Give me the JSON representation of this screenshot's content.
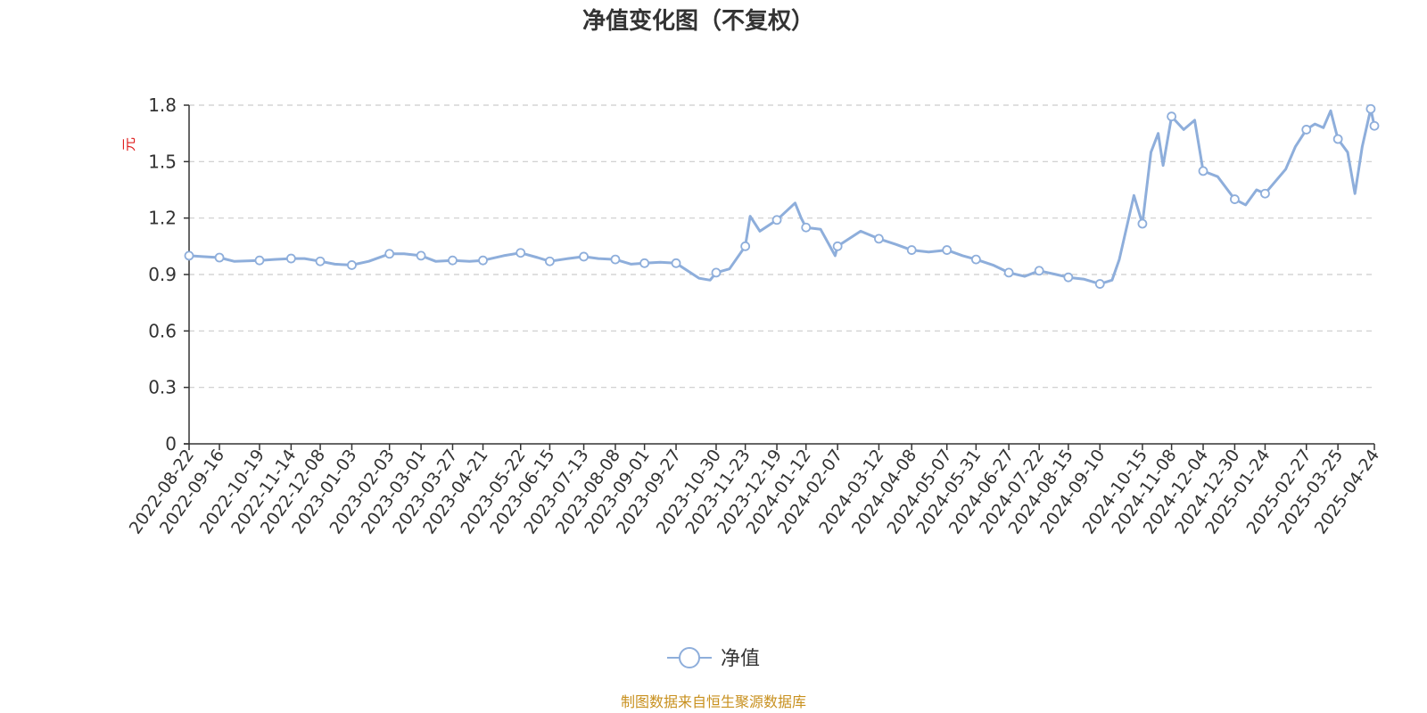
{
  "chart_data": {
    "type": "line",
    "title": "净值变化图（不复权）",
    "ylabel": "元",
    "ylim": [
      0,
      1.8
    ],
    "yticks": [
      0,
      0.3,
      0.6,
      0.9,
      1.2,
      1.5,
      1.8
    ],
    "grid": true,
    "legend_position": "bottom-center",
    "colors": {
      "line": "#8eaedb",
      "marker_fill": "#ffffff",
      "grid": "#cccccc",
      "axis": "#333333",
      "unit": "#e02020",
      "source": "#c8901e"
    },
    "x_tick_labels": [
      "2022-08-22",
      "2022-09-16",
      "2022-10-19",
      "2022-11-14",
      "2022-12-08",
      "2023-01-03",
      "2023-02-03",
      "2023-03-01",
      "2023-03-27",
      "2023-04-21",
      "2023-05-22",
      "2023-06-15",
      "2023-07-13",
      "2023-08-08",
      "2023-09-01",
      "2023-09-27",
      "2023-10-30",
      "2023-11-23",
      "2023-12-19",
      "2024-01-12",
      "2024-02-07",
      "2024-03-12",
      "2024-04-08",
      "2024-05-07",
      "2024-05-31",
      "2024-06-27",
      "2024-07-22",
      "2024-08-15",
      "2024-09-10",
      "2024-10-15",
      "2024-11-08",
      "2024-12-04",
      "2024-12-30",
      "2025-01-24",
      "2025-02-27",
      "2025-03-25",
      "2025-04-24"
    ],
    "series": [
      {
        "name": "净值",
        "x": [
          "2022-08-22",
          "2022-09-02",
          "2022-09-16",
          "2022-09-28",
          "2022-10-19",
          "2022-10-31",
          "2022-11-14",
          "2022-11-25",
          "2022-12-08",
          "2022-12-20",
          "2023-01-03",
          "2023-01-17",
          "2023-02-03",
          "2023-02-15",
          "2023-03-01",
          "2023-03-13",
          "2023-03-27",
          "2023-04-10",
          "2023-04-21",
          "2023-05-08",
          "2023-05-22",
          "2023-06-05",
          "2023-06-15",
          "2023-06-30",
          "2023-07-13",
          "2023-07-25",
          "2023-08-08",
          "2023-08-21",
          "2023-09-01",
          "2023-09-14",
          "2023-09-27",
          "2023-10-16",
          "2023-10-25",
          "2023-10-30",
          "2023-11-10",
          "2023-11-23",
          "2023-11-27",
          "2023-12-05",
          "2023-12-19",
          "2024-01-03",
          "2024-01-08",
          "2024-01-12",
          "2024-01-24",
          "2024-02-05",
          "2024-02-07",
          "2024-02-26",
          "2024-03-12",
          "2024-03-26",
          "2024-04-08",
          "2024-04-22",
          "2024-05-07",
          "2024-05-20",
          "2024-05-31",
          "2024-06-14",
          "2024-06-27",
          "2024-07-10",
          "2024-07-22",
          "2024-08-05",
          "2024-08-15",
          "2024-08-28",
          "2024-09-10",
          "2024-09-20",
          "2024-09-26",
          "2024-10-08",
          "2024-10-15",
          "2024-10-22",
          "2024-10-28",
          "2024-11-01",
          "2024-11-08",
          "2024-11-18",
          "2024-11-27",
          "2024-12-04",
          "2024-12-16",
          "2024-12-30",
          "2025-01-08",
          "2025-01-17",
          "2025-01-24",
          "2025-02-10",
          "2025-02-18",
          "2025-02-27",
          "2025-03-06",
          "2025-03-13",
          "2025-03-19",
          "2025-03-25",
          "2025-04-02",
          "2025-04-08",
          "2025-04-14",
          "2025-04-21",
          "2025-04-24"
        ],
        "values": [
          1.0,
          0.995,
          0.99,
          0.97,
          0.975,
          0.98,
          0.985,
          0.985,
          0.97,
          0.955,
          0.95,
          0.97,
          1.01,
          1.01,
          1.0,
          0.97,
          0.975,
          0.97,
          0.975,
          1.0,
          1.015,
          0.99,
          0.97,
          0.985,
          0.995,
          0.985,
          0.98,
          0.955,
          0.96,
          0.965,
          0.96,
          0.88,
          0.87,
          0.91,
          0.93,
          1.05,
          1.21,
          1.13,
          1.19,
          1.28,
          1.2,
          1.15,
          1.14,
          1.0,
          1.05,
          1.13,
          1.09,
          1.06,
          1.03,
          1.02,
          1.03,
          1.0,
          0.98,
          0.95,
          0.91,
          0.89,
          0.92,
          0.9,
          0.885,
          0.875,
          0.85,
          0.87,
          0.98,
          1.32,
          1.17,
          1.55,
          1.65,
          1.48,
          1.74,
          1.67,
          1.72,
          1.45,
          1.42,
          1.3,
          1.27,
          1.35,
          1.33,
          1.46,
          1.58,
          1.67,
          1.7,
          1.68,
          1.77,
          1.62,
          1.55,
          1.33,
          1.58,
          1.78,
          1.69
        ],
        "markers": [
          "2022-08-22",
          "2022-09-16",
          "2022-10-19",
          "2022-11-14",
          "2022-12-08",
          "2023-01-03",
          "2023-02-03",
          "2023-03-01",
          "2023-03-27",
          "2023-04-21",
          "2023-05-22",
          "2023-06-15",
          "2023-07-13",
          "2023-08-08",
          "2023-09-01",
          "2023-09-27",
          "2023-10-30",
          "2023-11-23",
          "2023-12-19",
          "2024-01-12",
          "2024-02-07",
          "2024-03-12",
          "2024-04-08",
          "2024-05-07",
          "2024-05-31",
          "2024-06-27",
          "2024-07-22",
          "2024-08-15",
          "2024-09-10",
          "2024-10-15",
          "2024-11-08",
          "2024-12-04",
          "2024-12-30",
          "2025-01-24",
          "2025-02-27",
          "2025-03-25",
          "2025-04-21",
          "2025-04-24"
        ]
      }
    ],
    "source_note": "制图数据来自恒生聚源数据库"
  }
}
